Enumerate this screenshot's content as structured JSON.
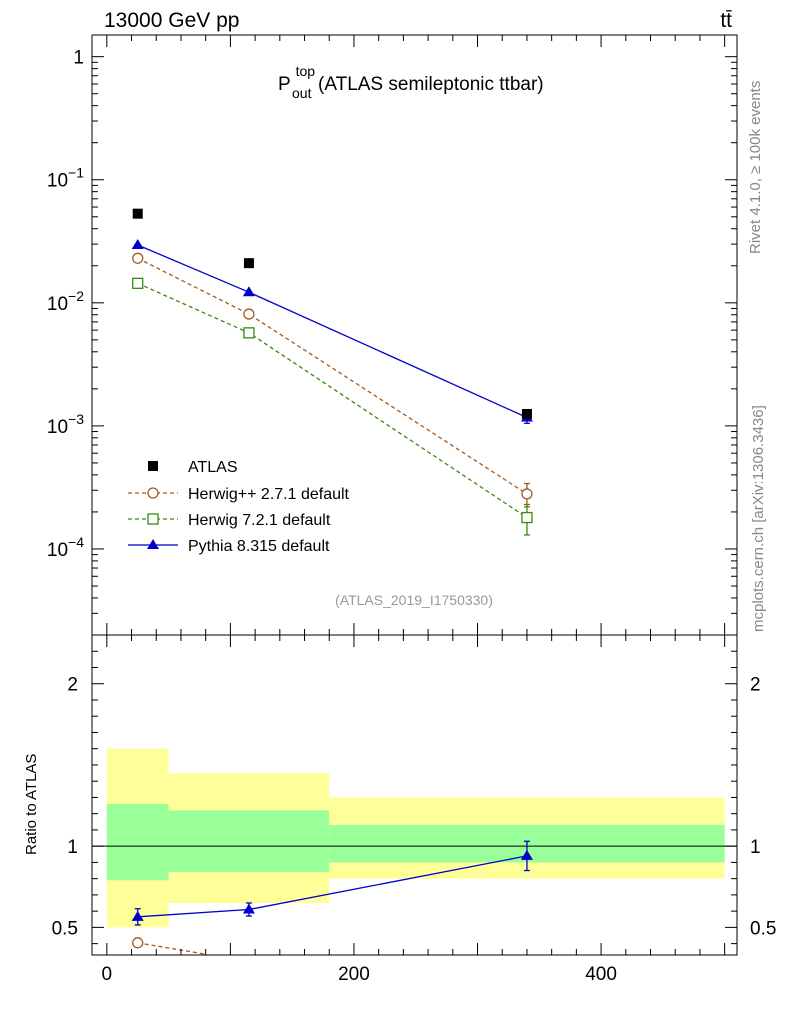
{
  "header": {
    "energy_label": "13000 GeV pp",
    "process_label": "tt̄"
  },
  "side_labels": {
    "rivet": "Rivet 4.1.0, ≥ 100k events",
    "mcplots": "mcplots.cern.ch [arXiv:1306.3436]"
  },
  "colors": {
    "data": "#000000",
    "herwigpp": "#a65a1e",
    "herwig7": "#3a8a10",
    "pythia": "#0000cc",
    "band_inner": "#99ff99",
    "band_outer": "#ffff99"
  },
  "chart_data": [
    {
      "type": "scatter",
      "title_main": "P",
      "title_sup": "top",
      "title_sub": "out",
      "title_rest": " (ATLAS semileptonic ttbar)",
      "analysis_label": "(ATLAS_2019_I1750330)",
      "yscale": "log",
      "ylim": [
        2e-05,
        1.5
      ],
      "xlim": [
        -12,
        510
      ],
      "ytick_labels": [
        {
          "value": 1,
          "base": "1",
          "exp": ""
        },
        {
          "value": 0.1,
          "base": "10",
          "exp": "−1"
        },
        {
          "value": 0.01,
          "base": "10",
          "exp": "−2"
        },
        {
          "value": 0.001,
          "base": "10",
          "exp": "−3"
        },
        {
          "value": 0.0001,
          "base": "10",
          "exp": "−4"
        }
      ],
      "legend_position": "lower-left",
      "series": [
        {
          "name": "ATLAS",
          "style": "data",
          "x": [
            25,
            115,
            340
          ],
          "y": [
            0.053,
            0.021,
            0.00125
          ]
        },
        {
          "name": "Herwig++ 2.7.1 default",
          "style": "herwigpp",
          "x": [
            25,
            115,
            340
          ],
          "y": [
            0.023,
            0.0081,
            0.00028
          ],
          "err": [
            0,
            0,
            6e-05
          ]
        },
        {
          "name": "Herwig 7.2.1 default",
          "style": "herwig7",
          "x": [
            25,
            115,
            340
          ],
          "y": [
            0.0144,
            0.0057,
            0.00018
          ],
          "err": [
            0,
            0,
            5e-05
          ]
        },
        {
          "name": "Pythia 8.315 default",
          "style": "pythia",
          "x": [
            25,
            115,
            340
          ],
          "y": [
            0.0295,
            0.0122,
            0.00117
          ],
          "err": [
            0,
            0,
            0.00012
          ]
        }
      ]
    },
    {
      "type": "scatter",
      "ylabel": "Ratio to ATLAS",
      "ylim": [
        0.33,
        2.3
      ],
      "xlim": [
        -12,
        510
      ],
      "ytick_labels": [
        {
          "value": 2,
          "label": "2"
        },
        {
          "value": 1,
          "label": "1"
        },
        {
          "value": 0.5,
          "label": "0.5"
        }
      ],
      "xtick_labels": [
        {
          "value": 0,
          "label": "0"
        },
        {
          "value": 200,
          "label": "200"
        },
        {
          "value": 400,
          "label": "400"
        }
      ],
      "bands": [
        {
          "x0": 0,
          "x1": 50,
          "inner": [
            0.79,
            1.26
          ],
          "outer": [
            0.5,
            1.6
          ]
        },
        {
          "x0": 50,
          "x1": 180,
          "inner": [
            0.84,
            1.22
          ],
          "outer": [
            0.65,
            1.45
          ]
        },
        {
          "x0": 180,
          "x1": 500,
          "inner": [
            0.9,
            1.13
          ],
          "outer": [
            0.8,
            1.3
          ]
        }
      ],
      "series": [
        {
          "name": "Herwig++ 2.7.1 default",
          "style": "herwigpp",
          "x": [
            25,
            80
          ],
          "y": [
            0.405,
            0.335
          ],
          "err": [
            0.025,
            0
          ]
        },
        {
          "name": "Pythia 8.315 default",
          "style": "pythia",
          "x": [
            25,
            115,
            340
          ],
          "y": [
            0.565,
            0.61,
            0.94
          ],
          "err": [
            0.05,
            0.04,
            0.09
          ]
        }
      ]
    }
  ]
}
